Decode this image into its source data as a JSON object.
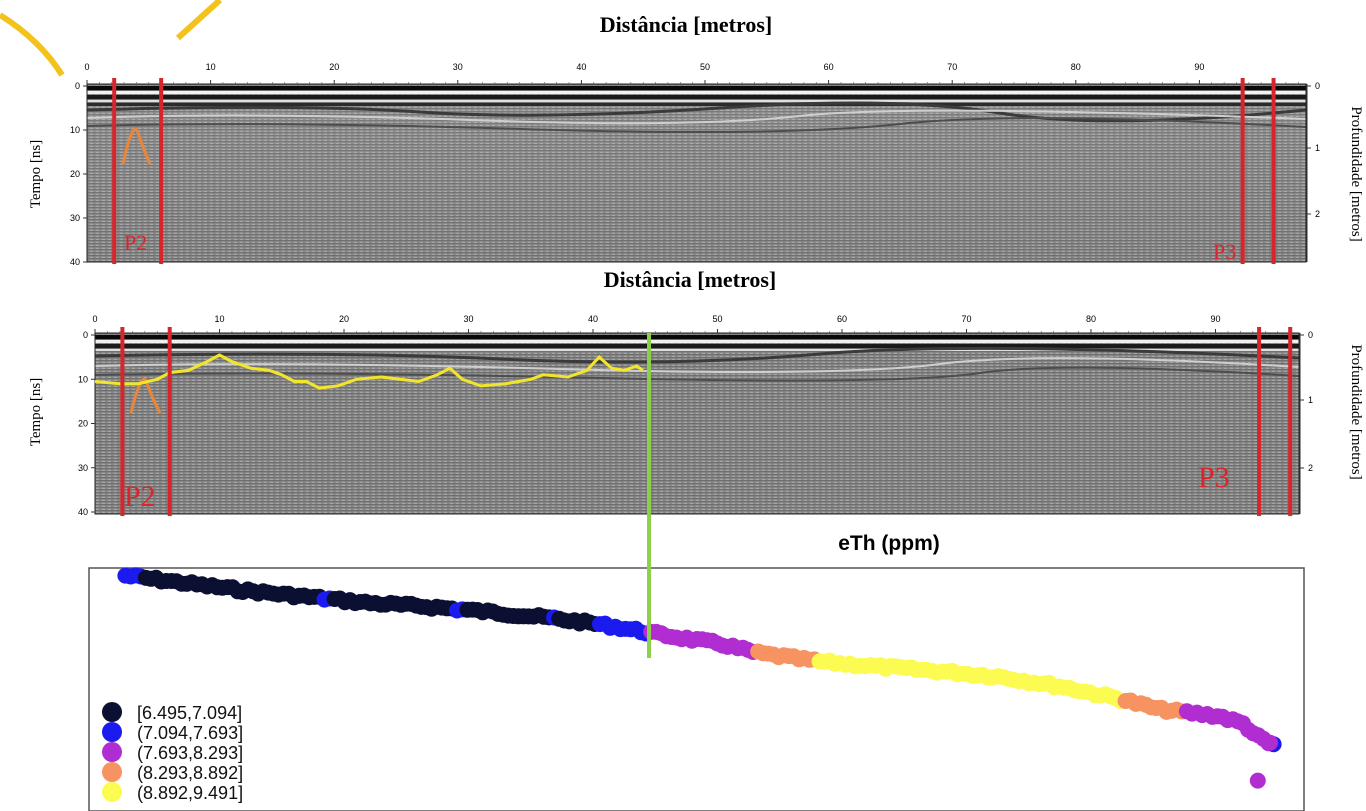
{
  "panels": [
    {
      "top_axis_label": "Distância [metros]",
      "left_axis_label": "Tempo [ns]",
      "right_axis_label": "Profundidade [metros]",
      "x_ticks": [
        "0",
        "10",
        "20",
        "30",
        "40",
        "50",
        "60",
        "70",
        "80",
        "90"
      ],
      "y_ticks": [
        "0",
        "10",
        "20",
        "30",
        "40"
      ],
      "depth_ticks": [
        "0",
        "1",
        "2"
      ],
      "markers": [
        {
          "label": "P2",
          "lines_at_m": [
            2.2,
            6.0
          ]
        },
        {
          "label": "P3",
          "lines_at_m": [
            93.5,
            96.0
          ]
        }
      ],
      "hyperbola_color": "#e8863a",
      "marker_color": "#d8252b"
    },
    {
      "top_axis_label": "Distância [metros]",
      "left_axis_label": "Tempo [ns]",
      "right_axis_label": "Profundidade [metros]",
      "x_ticks": [
        "0",
        "10",
        "20",
        "30",
        "40",
        "50",
        "60",
        "70",
        "80",
        "90"
      ],
      "y_ticks": [
        "0",
        "10",
        "20",
        "30",
        "40"
      ],
      "depth_ticks": [
        "0",
        "1",
        "2"
      ],
      "markers": [
        {
          "label": "P2",
          "lines_at_m": [
            2.2,
            6.0
          ]
        },
        {
          "label": "P3",
          "lines_at_m": [
            93.5,
            96.0
          ]
        }
      ],
      "reflector_color": "#f2e62a",
      "reflector_ns": [
        [
          0,
          10.5
        ],
        [
          2,
          11
        ],
        [
          3.5,
          11
        ],
        [
          5,
          10
        ],
        [
          6,
          8.5
        ],
        [
          7.5,
          8
        ],
        [
          9,
          6
        ],
        [
          10,
          4.5
        ],
        [
          11,
          6
        ],
        [
          12.5,
          7.5
        ],
        [
          14,
          8
        ],
        [
          15,
          9
        ],
        [
          16,
          10.5
        ],
        [
          17,
          10.5
        ],
        [
          18,
          12
        ],
        [
          19.5,
          11.5
        ],
        [
          21,
          10
        ],
        [
          23,
          9.5
        ],
        [
          24.5,
          10
        ],
        [
          26,
          10.5
        ],
        [
          27.5,
          9
        ],
        [
          28.5,
          7.5
        ],
        [
          29.5,
          10
        ],
        [
          31,
          11.5
        ],
        [
          33,
          11
        ],
        [
          35,
          10
        ],
        [
          36,
          9
        ],
        [
          38,
          9.5
        ],
        [
          39.5,
          8
        ],
        [
          40.5,
          5
        ],
        [
          41.5,
          7.5
        ],
        [
          42.5,
          8
        ],
        [
          43.5,
          7
        ],
        [
          44,
          8
        ]
      ],
      "green_line_at_m": 44.5,
      "green_color": "#8cd04a"
    }
  ],
  "chart_data": {
    "type": "scatter",
    "title": "eTh (ppm)",
    "xlim": [
      0,
      100
    ],
    "ylim": [
      6.4,
      9.6
    ],
    "legend_position": "bottom-left",
    "classes": [
      {
        "label": "[6.495,7.094]",
        "color": "#0b1033"
      },
      {
        "label": "(7.094,7.693]",
        "color": "#1b1bf0"
      },
      {
        "label": "(7.693,8.293]",
        "color": "#b02dd1"
      },
      {
        "label": "(8.293,8.892]",
        "color": "#f79360"
      },
      {
        "label": "(8.892,9.491]",
        "color": "#fbfb52"
      }
    ],
    "profile": [
      [
        3,
        6.5
      ],
      [
        8,
        6.6
      ],
      [
        13,
        6.7
      ],
      [
        18,
        6.78
      ],
      [
        23,
        6.86
      ],
      [
        28,
        6.91
      ],
      [
        33,
        6.98
      ],
      [
        38,
        7.06
      ],
      [
        42,
        7.14
      ],
      [
        45,
        7.22
      ],
      [
        48,
        7.3
      ],
      [
        52,
        7.4
      ],
      [
        55,
        7.52
      ],
      [
        60,
        7.63
      ],
      [
        65,
        7.7
      ],
      [
        70,
        7.76
      ],
      [
        75,
        7.83
      ],
      [
        80,
        7.96
      ],
      [
        85,
        8.13
      ],
      [
        88,
        8.26
      ],
      [
        93,
        8.35
      ],
      [
        95,
        8.45
      ],
      [
        96,
        8.6
      ],
      [
        97.5,
        8.75
      ]
    ]
  }
}
